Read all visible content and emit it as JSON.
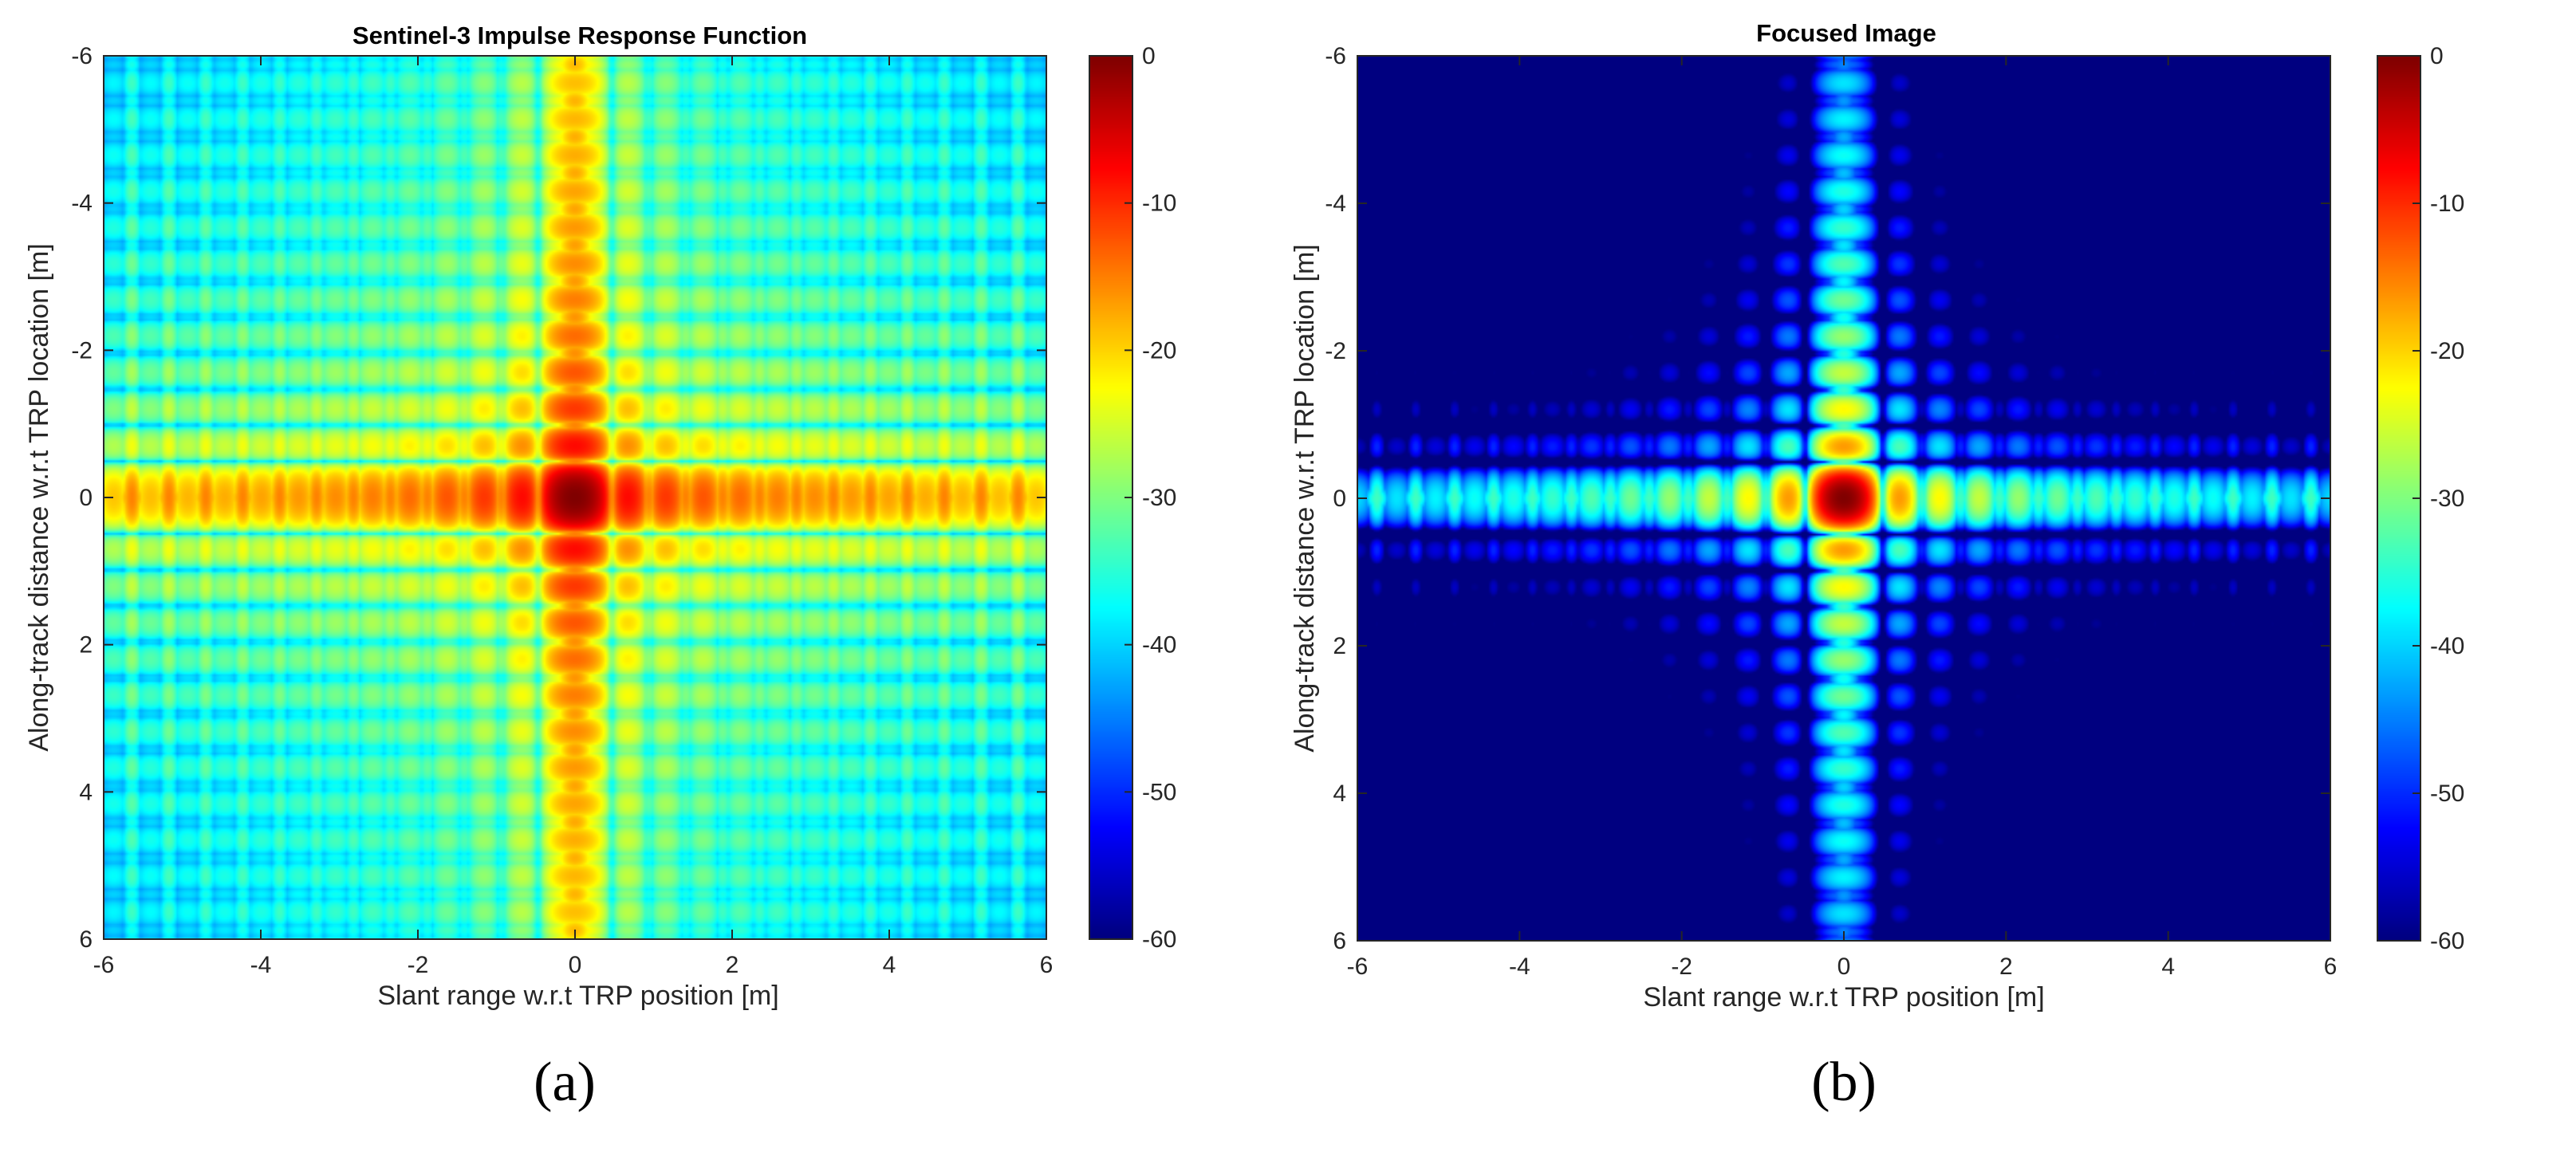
{
  "chart_data": [
    {
      "type": "heatmap",
      "title": "Sentinel-3 Impulse Response Function",
      "xlabel": "Slant range w.r.t TRP position [m]",
      "ylabel": "Along-track distance w.r.t TRP location [m]",
      "xlim": [
        -6,
        6
      ],
      "ylim": [
        -6,
        6
      ],
      "y_reversed": true,
      "xticks": [
        "-6",
        "-4",
        "-2",
        "0",
        "2",
        "4",
        "6"
      ],
      "yticks": [
        "-6",
        "-4",
        "-2",
        "0",
        "2",
        "4",
        "6"
      ],
      "colorbar": {
        "range": [
          -60,
          0
        ],
        "ticks": [
          "0",
          "-10",
          "-20",
          "-30",
          "-40",
          "-50",
          "-60"
        ],
        "colormap": "jet"
      },
      "peak": {
        "x": 0,
        "y": 0,
        "value": 0
      },
      "range_lobe_spacing": 0.47,
      "azimuth_lobe_spacing": 0.49,
      "panel_label": "(a)"
    },
    {
      "type": "heatmap",
      "title": "Focused Image",
      "xlabel": "Slant range w.r.t TRP position [m]",
      "ylabel": "Along-track distance w.r.t TRP location [m]",
      "xlim": [
        -6,
        6
      ],
      "ylim": [
        -6,
        6
      ],
      "y_reversed": true,
      "xticks": [
        "-6",
        "-4",
        "-2",
        "0",
        "2",
        "4",
        "6"
      ],
      "yticks": [
        "-6",
        "-4",
        "-2",
        "0",
        "2",
        "4",
        "6"
      ],
      "colorbar": {
        "range": [
          -60,
          0
        ],
        "ticks": [
          "0",
          "-10",
          "-20",
          "-30",
          "-40",
          "-50",
          "-60"
        ],
        "colormap": "jet"
      },
      "peak": {
        "x": 0,
        "y": 0,
        "value": 0
      },
      "range_lobe_spacing": 0.48,
      "azimuth_lobe_spacing": 0.49,
      "panel_label": "(b)"
    }
  ]
}
